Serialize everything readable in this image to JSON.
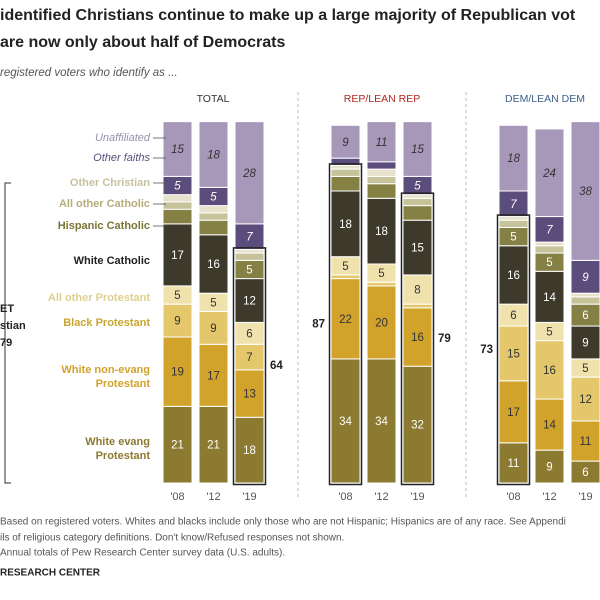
{
  "chart_data": {
    "type": "stacked_bar",
    "title_lines": [
      "identified Christians continue to make up a large majority of Republican vot",
      "are now only about half of Democrats"
    ],
    "subtitle": "registered voters who identify as ...",
    "groups": [
      "TOTAL",
      "REP/LEAN REP",
      "DEM/LEAN DEM"
    ],
    "group_colors": [
      "#333333",
      "#b5261e",
      "#3b5f8a"
    ],
    "categories": [
      "'08",
      "'12",
      "'19",
      "'08",
      "'12",
      "'19",
      "'08",
      "'12",
      "'19"
    ],
    "series": [
      {
        "name": "White evang Protestant",
        "color": "#8b7a30",
        "values": [
          21,
          21,
          18,
          34,
          34,
          32,
          11,
          9,
          6
        ]
      },
      {
        "name": "White non-evang Protestant",
        "color": "#d1a32a",
        "values": [
          19,
          17,
          13,
          22,
          20,
          16,
          17,
          14,
          11
        ]
      },
      {
        "name": "Black Protestant",
        "color": "#e3c76a",
        "values": [
          9,
          9,
          7,
          1,
          1,
          1,
          15,
          16,
          12
        ]
      },
      {
        "name": "All other Protestant",
        "color": "#f0e2ad",
        "values": [
          5,
          5,
          6,
          5,
          5,
          8,
          6,
          5,
          5
        ]
      },
      {
        "name": "White Catholic",
        "color": "#3d3a2c",
        "values": [
          17,
          16,
          12,
          18,
          18,
          15,
          16,
          14,
          9
        ]
      },
      {
        "name": "Hispanic Catholic",
        "color": "#858145",
        "values": [
          4,
          4,
          5,
          4,
          4,
          4,
          5,
          5,
          6
        ]
      },
      {
        "name": "All other Catholic",
        "color": "#c6c29a",
        "values": [
          2,
          2,
          2,
          2,
          2,
          2,
          2,
          2,
          2
        ]
      },
      {
        "name": "Other Christian",
        "color": "#e6e2cc",
        "values": [
          2,
          2,
          1,
          1,
          2,
          1,
          1,
          1,
          1
        ]
      },
      {
        "name": "Other faiths",
        "color": "#5b4d7b",
        "values": [
          5,
          5,
          7,
          2,
          2,
          5,
          7,
          7,
          9
        ]
      },
      {
        "name": "Unaffiliated",
        "color": "#a797b9",
        "values": [
          15,
          18,
          28,
          9,
          11,
          15,
          18,
          24,
          38
        ]
      }
    ],
    "net_values": [
      null,
      null,
      64,
      87,
      null,
      79,
      73,
      null,
      null
    ],
    "net_label": {
      "lines": [
        "ET",
        "stian"
      ],
      "value": 79
    },
    "notes": [
      "Based on registered voters. Whites and blacks include only those who are not Hispanic; Hispanics are of any race. See Appendi",
      "ils of religious category definitions. Don't know/Refused responses not shown.",
      " Annual totals of Pew Research Center survey data (U.S. adults)."
    ],
    "source": "RESEARCH CENTER"
  }
}
